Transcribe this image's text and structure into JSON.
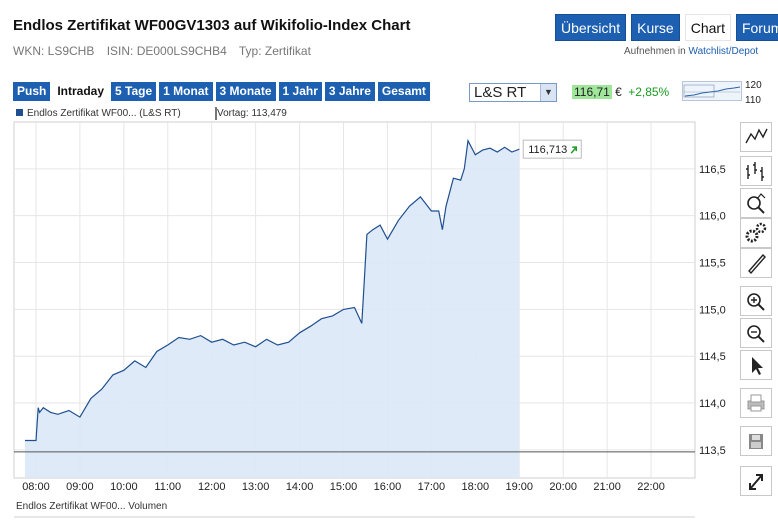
{
  "header": {
    "title": "Endlos Zertifikat WF00GV1303 auf Wikifolio-Index Chart",
    "wkn": "WKN: LS9CHB",
    "isin": "ISIN: DE000LS9CHB4",
    "typ": "Typ: Zertifikat",
    "tabs": [
      {
        "label": "Übersicht",
        "active": false
      },
      {
        "label": "Kurse",
        "active": false
      },
      {
        "label": "Chart",
        "active": true
      },
      {
        "label": "Forum",
        "active": false
      }
    ],
    "watchlist_prefix": "Aufnehmen in",
    "watchlist_link": "Watchlist/Depot"
  },
  "toolbar": {
    "ranges": [
      {
        "label": "Push",
        "active": false
      },
      {
        "label": "Intraday",
        "active": true
      },
      {
        "label": "5 Tage",
        "active": false
      },
      {
        "label": "1 Monat",
        "active": false
      },
      {
        "label": "3 Monate",
        "active": false
      },
      {
        "label": "1 Jahr",
        "active": false
      },
      {
        "label": "3 Jahre",
        "active": false
      },
      {
        "label": "Gesamt",
        "active": false
      }
    ],
    "exchange": "L&S RT",
    "price": "116,71",
    "currency": "€",
    "change": "+2,85%",
    "mini_labels": [
      "120",
      "110"
    ]
  },
  "legend": {
    "series": "Endlos Zertifikat WF00... (L&S RT)",
    "vortag": "Vortag: 113,479",
    "volume": "Endlos Zertifikat WF00... Volumen"
  },
  "colors": {
    "accent": "#1d5fb0",
    "line": "#1f4f8f",
    "area": "#dbe8f8",
    "positive": "#1a9b22"
  },
  "sidebar_icons": [
    "line-chart-icon",
    "ohlc-chart-icon",
    "indicator-search-icon",
    "settings-gears-icon",
    "draw-pen-icon",
    "zoom-in-icon",
    "zoom-out-icon",
    "pointer-icon",
    "print-icon",
    "save-icon",
    "fullscreen-icon"
  ],
  "chart_data": {
    "type": "area",
    "x_ticks": [
      "08:00",
      "09:00",
      "10:00",
      "11:00",
      "12:00",
      "13:00",
      "14:00",
      "15:00",
      "16:00",
      "17:00",
      "18:00",
      "19:00",
      "20:00",
      "21:00",
      "22:00"
    ],
    "y_ticks": [
      "113,5",
      "114,0",
      "114,5",
      "115,0",
      "115,5",
      "116,0",
      "116,5"
    ],
    "ylim": [
      113.2,
      117.0
    ],
    "xlim": [
      "07:30",
      "23:00"
    ],
    "prev_close": 113.479,
    "last_label": "116,713",
    "series": [
      {
        "x": [
          "07:45",
          "08:00",
          "08:03",
          "08:05",
          "08:10",
          "08:20",
          "08:30",
          "08:45",
          "09:00",
          "09:15",
          "09:30",
          "09:45",
          "10:00",
          "10:15",
          "10:30",
          "10:45",
          "11:00",
          "11:15",
          "11:30",
          "11:45",
          "12:00",
          "12:15",
          "12:30",
          "12:45",
          "13:00",
          "13:15",
          "13:30",
          "13:45",
          "14:00",
          "14:15",
          "14:30",
          "14:45",
          "15:00",
          "15:15",
          "15:25",
          "15:28",
          "15:32",
          "15:40",
          "15:50",
          "16:00",
          "16:15",
          "16:30",
          "16:45",
          "17:00",
          "17:10",
          "17:15",
          "17:20",
          "17:30",
          "17:40",
          "17:45",
          "17:50",
          "18:00",
          "18:10",
          "18:20",
          "18:30",
          "18:40",
          "18:50",
          "19:00"
        ],
        "y": [
          113.6,
          113.6,
          113.95,
          113.9,
          113.95,
          113.9,
          113.88,
          113.92,
          113.85,
          114.05,
          114.15,
          114.3,
          114.35,
          114.45,
          114.38,
          114.55,
          114.62,
          114.7,
          114.68,
          114.72,
          114.65,
          114.68,
          114.62,
          114.65,
          114.6,
          114.68,
          114.62,
          114.65,
          114.75,
          114.82,
          114.9,
          114.93,
          115.0,
          115.02,
          114.85,
          115.25,
          115.8,
          115.85,
          115.9,
          115.75,
          115.95,
          116.1,
          116.2,
          116.05,
          116.05,
          115.85,
          116.1,
          116.4,
          116.38,
          116.5,
          116.8,
          116.65,
          116.7,
          116.72,
          116.68,
          116.73,
          116.68,
          116.71
        ]
      }
    ]
  }
}
